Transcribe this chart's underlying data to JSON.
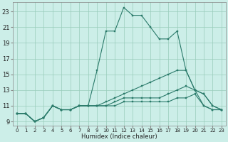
{
  "xlabel": "Humidex (Indice chaleur)",
  "bg_color": "#cceee8",
  "line_color": "#2a7a6a",
  "grid_color": "#99ccbb",
  "xlim": [
    -0.5,
    23.5
  ],
  "ylim": [
    8.5,
    24.2
  ],
  "xticks": [
    0,
    1,
    2,
    3,
    4,
    5,
    6,
    7,
    8,
    9,
    10,
    11,
    12,
    13,
    14,
    15,
    16,
    17,
    18,
    19,
    20,
    21,
    22,
    23
  ],
  "yticks": [
    9,
    11,
    13,
    15,
    17,
    19,
    21,
    23
  ],
  "series": [
    {
      "x": [
        0,
        1,
        2,
        3,
        4,
        5,
        6,
        7,
        8,
        9,
        10,
        11,
        12,
        13,
        14,
        15,
        16,
        17,
        18,
        19,
        20,
        21,
        22,
        23
      ],
      "y": [
        10.0,
        10.0,
        9.0,
        9.5,
        11.0,
        10.5,
        10.5,
        11.0,
        11.0,
        15.5,
        20.5,
        20.5,
        23.5,
        22.5,
        22.5,
        21.0,
        19.5,
        19.5,
        20.5,
        15.5,
        13.0,
        12.5,
        11.0,
        10.5
      ]
    },
    {
      "x": [
        0,
        1,
        2,
        3,
        4,
        5,
        6,
        7,
        8,
        9,
        10,
        11,
        12,
        13,
        14,
        15,
        16,
        17,
        18,
        19,
        20,
        21,
        22,
        23
      ],
      "y": [
        10.0,
        10.0,
        9.0,
        9.5,
        11.0,
        10.5,
        10.5,
        11.0,
        11.0,
        11.0,
        11.5,
        12.0,
        12.5,
        13.0,
        13.5,
        14.0,
        14.5,
        15.0,
        15.5,
        15.5,
        13.0,
        12.5,
        11.0,
        10.5
      ]
    },
    {
      "x": [
        0,
        1,
        2,
        3,
        4,
        5,
        6,
        7,
        8,
        9,
        10,
        11,
        12,
        13,
        14,
        15,
        16,
        17,
        18,
        19,
        20,
        21,
        22,
        23
      ],
      "y": [
        10.0,
        10.0,
        9.0,
        9.5,
        11.0,
        10.5,
        10.5,
        11.0,
        11.0,
        11.0,
        11.0,
        11.5,
        12.0,
        12.0,
        12.0,
        12.0,
        12.0,
        12.5,
        13.0,
        13.5,
        13.0,
        11.0,
        10.5,
        10.5
      ]
    },
    {
      "x": [
        0,
        1,
        2,
        3,
        4,
        5,
        6,
        7,
        8,
        9,
        10,
        11,
        12,
        13,
        14,
        15,
        16,
        17,
        18,
        19,
        20,
        21,
        22,
        23
      ],
      "y": [
        10.0,
        10.0,
        9.0,
        9.5,
        11.0,
        10.5,
        10.5,
        11.0,
        11.0,
        11.0,
        11.0,
        11.0,
        11.5,
        11.5,
        11.5,
        11.5,
        11.5,
        11.5,
        12.0,
        12.0,
        12.5,
        11.0,
        10.5,
        10.5
      ]
    }
  ]
}
